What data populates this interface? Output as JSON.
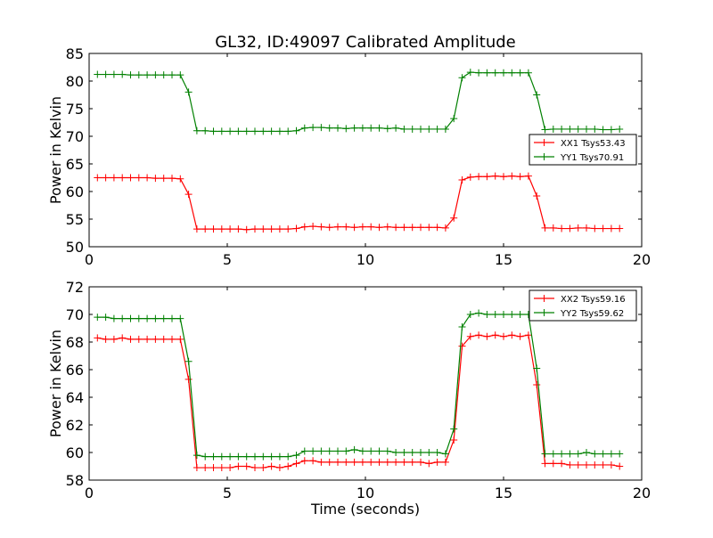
{
  "figure": {
    "title": "GL32, ID:49097 Calibrated Amplitude"
  },
  "chart_data": [
    {
      "type": "line",
      "title": "GL32, ID:49097 Calibrated Amplitude",
      "xlabel": "",
      "ylabel": "Power in Kelvin",
      "xlim": [
        0,
        20
      ],
      "ylim": [
        50,
        85
      ],
      "xticks": [
        0,
        5,
        10,
        15,
        20
      ],
      "yticks": [
        50,
        55,
        60,
        65,
        70,
        75,
        80,
        85
      ],
      "grid": false,
      "legend_position": "right",
      "x": [
        0.3,
        0.6,
        0.9,
        1.2,
        1.5,
        1.8,
        2.1,
        2.4,
        2.7,
        3.0,
        3.3,
        3.6,
        3.9,
        4.2,
        4.5,
        4.8,
        5.1,
        5.4,
        5.7,
        6.0,
        6.3,
        6.6,
        6.9,
        7.2,
        7.5,
        7.8,
        8.1,
        8.4,
        8.7,
        9.0,
        9.3,
        9.6,
        9.9,
        10.2,
        10.5,
        10.8,
        11.1,
        11.4,
        11.7,
        12.0,
        12.3,
        12.6,
        12.9,
        13.2,
        13.5,
        13.8,
        14.1,
        14.4,
        14.7,
        15.0,
        15.3,
        15.6,
        15.9,
        16.2,
        16.5,
        16.8,
        17.1,
        17.4,
        17.7,
        18.0,
        18.3,
        18.6,
        18.9,
        19.2
      ],
      "series": [
        {
          "name": "XX1 Tsys53.43",
          "color": "#ff0000",
          "values": [
            62.5,
            62.5,
            62.5,
            62.5,
            62.5,
            62.5,
            62.5,
            62.4,
            62.4,
            62.4,
            62.3,
            59.5,
            53.2,
            53.2,
            53.2,
            53.2,
            53.2,
            53.2,
            53.1,
            53.2,
            53.2,
            53.2,
            53.2,
            53.2,
            53.3,
            53.6,
            53.7,
            53.6,
            53.5,
            53.6,
            53.6,
            53.5,
            53.6,
            53.6,
            53.5,
            53.6,
            53.5,
            53.5,
            53.5,
            53.5,
            53.5,
            53.5,
            53.4,
            55.2,
            62.1,
            62.6,
            62.7,
            62.7,
            62.8,
            62.7,
            62.8,
            62.7,
            62.8,
            59.2,
            53.4,
            53.4,
            53.3,
            53.3,
            53.4,
            53.4,
            53.3,
            53.3,
            53.3,
            53.3
          ]
        },
        {
          "name": "YY1 Tsys70.91",
          "color": "#008000",
          "values": [
            81.2,
            81.2,
            81.2,
            81.2,
            81.1,
            81.1,
            81.1,
            81.1,
            81.1,
            81.1,
            81.1,
            78.0,
            71.0,
            71.0,
            70.9,
            70.9,
            70.9,
            70.9,
            70.9,
            70.9,
            70.9,
            70.9,
            70.9,
            70.9,
            71.0,
            71.5,
            71.6,
            71.6,
            71.5,
            71.5,
            71.4,
            71.5,
            71.5,
            71.5,
            71.5,
            71.4,
            71.5,
            71.3,
            71.3,
            71.3,
            71.3,
            71.3,
            71.3,
            73.2,
            80.6,
            81.6,
            81.5,
            81.5,
            81.5,
            81.5,
            81.5,
            81.5,
            81.5,
            77.5,
            71.2,
            71.3,
            71.3,
            71.3,
            71.3,
            71.3,
            71.3,
            71.2,
            71.2,
            71.3
          ]
        }
      ]
    },
    {
      "type": "line",
      "title": "",
      "xlabel": "Time (seconds)",
      "ylabel": "Power in Kelvin",
      "xlim": [
        0,
        20
      ],
      "ylim": [
        58,
        72
      ],
      "xticks": [
        0,
        5,
        10,
        15,
        20
      ],
      "yticks": [
        58,
        60,
        62,
        64,
        66,
        68,
        70,
        72
      ],
      "grid": false,
      "legend_position": "top-right",
      "x": [
        0.3,
        0.6,
        0.9,
        1.2,
        1.5,
        1.8,
        2.1,
        2.4,
        2.7,
        3.0,
        3.3,
        3.6,
        3.9,
        4.2,
        4.5,
        4.8,
        5.1,
        5.4,
        5.7,
        6.0,
        6.3,
        6.6,
        6.9,
        7.2,
        7.5,
        7.8,
        8.1,
        8.4,
        8.7,
        9.0,
        9.3,
        9.6,
        9.9,
        10.2,
        10.5,
        10.8,
        11.1,
        11.4,
        11.7,
        12.0,
        12.3,
        12.6,
        12.9,
        13.2,
        13.5,
        13.8,
        14.1,
        14.4,
        14.7,
        15.0,
        15.3,
        15.6,
        15.9,
        16.2,
        16.5,
        16.8,
        17.1,
        17.4,
        17.7,
        18.0,
        18.3,
        18.6,
        18.9,
        19.2
      ],
      "series": [
        {
          "name": "XX2 Tsys59.16",
          "color": "#ff0000",
          "values": [
            68.3,
            68.2,
            68.2,
            68.3,
            68.2,
            68.2,
            68.2,
            68.2,
            68.2,
            68.2,
            68.2,
            65.3,
            58.9,
            58.9,
            58.9,
            58.9,
            58.9,
            59.0,
            59.0,
            58.9,
            58.9,
            59.0,
            58.9,
            59.0,
            59.2,
            59.4,
            59.4,
            59.3,
            59.3,
            59.3,
            59.3,
            59.3,
            59.3,
            59.3,
            59.3,
            59.3,
            59.3,
            59.3,
            59.3,
            59.3,
            59.2,
            59.3,
            59.3,
            60.9,
            67.7,
            68.4,
            68.5,
            68.4,
            68.5,
            68.4,
            68.5,
            68.4,
            68.5,
            64.9,
            59.2,
            59.2,
            59.2,
            59.1,
            59.1,
            59.1,
            59.1,
            59.1,
            59.1,
            59.0
          ]
        },
        {
          "name": "YY2 Tsys59.62",
          "color": "#008000",
          "values": [
            69.8,
            69.8,
            69.7,
            69.7,
            69.7,
            69.7,
            69.7,
            69.7,
            69.7,
            69.7,
            69.7,
            66.6,
            59.8,
            59.7,
            59.7,
            59.7,
            59.7,
            59.7,
            59.7,
            59.7,
            59.7,
            59.7,
            59.7,
            59.7,
            59.8,
            60.1,
            60.1,
            60.1,
            60.1,
            60.1,
            60.1,
            60.2,
            60.1,
            60.1,
            60.1,
            60.1,
            60.0,
            60.0,
            60.0,
            60.0,
            60.0,
            60.0,
            59.9,
            61.7,
            69.1,
            70.0,
            70.1,
            70.0,
            70.0,
            70.0,
            70.0,
            70.0,
            70.0,
            66.1,
            59.9,
            59.9,
            59.9,
            59.9,
            59.9,
            60.0,
            59.9,
            59.9,
            59.9,
            59.9
          ]
        }
      ]
    }
  ]
}
